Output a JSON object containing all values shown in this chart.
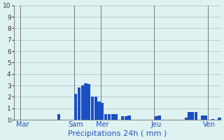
{
  "title": "",
  "xlabel": "Précipitations 24h ( mm )",
  "ylabel": "",
  "background_color": "#dff2f2",
  "bar_color": "#1a4fc4",
  "grid_color": "#b8b8b8",
  "vline_color": "#666666",
  "ylim": [
    0,
    10
  ],
  "yticks": [
    0,
    1,
    2,
    3,
    4,
    5,
    6,
    7,
    8,
    9,
    10
  ],
  "day_labels": [
    "Mar",
    "Sam",
    "Mer",
    "Jeu",
    "Ven"
  ],
  "day_tick_positions": [
    2,
    18,
    26,
    42,
    58
  ],
  "vline_positions": [
    2,
    18,
    26,
    42,
    58
  ],
  "num_bars": 62,
  "values": [
    0,
    0,
    0,
    0,
    0,
    0,
    0,
    0,
    0,
    0,
    0,
    0,
    0,
    0.5,
    0,
    0,
    0,
    0,
    2.3,
    2.8,
    3.0,
    3.2,
    3.1,
    2.0,
    2.0,
    1.6,
    1.5,
    0.5,
    0.5,
    0.5,
    0.5,
    0,
    0.3,
    0.3,
    0.4,
    0,
    0,
    0,
    0,
    0,
    0,
    0,
    0.3,
    0.4,
    0,
    0,
    0,
    0,
    0,
    0,
    0,
    0.2,
    0.7,
    0.7,
    0.7,
    0,
    0.4,
    0.4,
    0,
    0.1,
    0,
    0.2
  ]
}
